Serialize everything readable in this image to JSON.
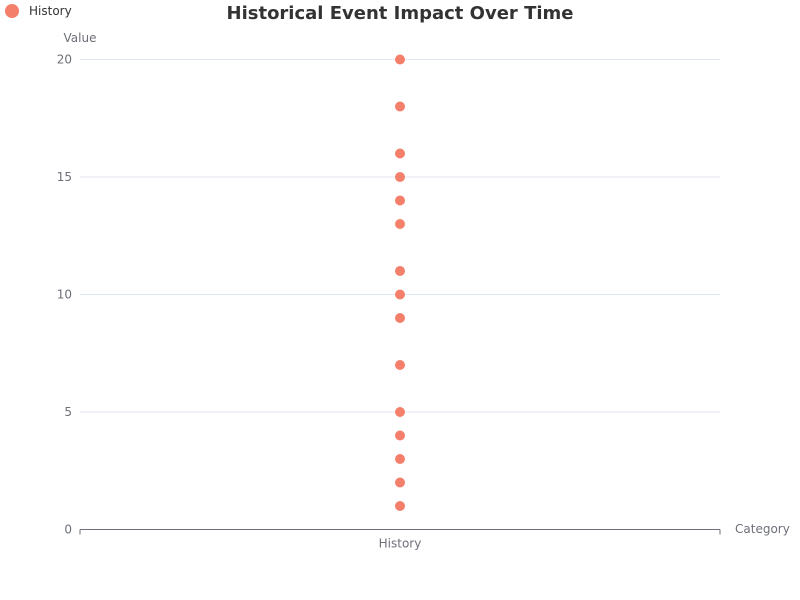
{
  "chart_data": {
    "type": "scatter",
    "title": "Historical Event Impact Over Time",
    "xlabel": "Category",
    "ylabel": "Value",
    "categories": [
      "History"
    ],
    "ylim": [
      0,
      20
    ],
    "yticks": [
      "0",
      "5",
      "10",
      "15",
      "20"
    ],
    "grid": true,
    "legend_position": "top-left",
    "series": [
      {
        "name": "History",
        "color": "#f4806b",
        "points": [
          {
            "x": "History",
            "y": 20
          },
          {
            "x": "History",
            "y": 18
          },
          {
            "x": "History",
            "y": 16
          },
          {
            "x": "History",
            "y": 15
          },
          {
            "x": "History",
            "y": 14
          },
          {
            "x": "History",
            "y": 13
          },
          {
            "x": "History",
            "y": 11
          },
          {
            "x": "History",
            "y": 10
          },
          {
            "x": "History",
            "y": 9
          },
          {
            "x": "History",
            "y": 7
          },
          {
            "x": "History",
            "y": 5
          },
          {
            "x": "History",
            "y": 4
          },
          {
            "x": "History",
            "y": 3
          },
          {
            "x": "History",
            "y": 2
          },
          {
            "x": "History",
            "y": 1
          }
        ]
      }
    ]
  }
}
